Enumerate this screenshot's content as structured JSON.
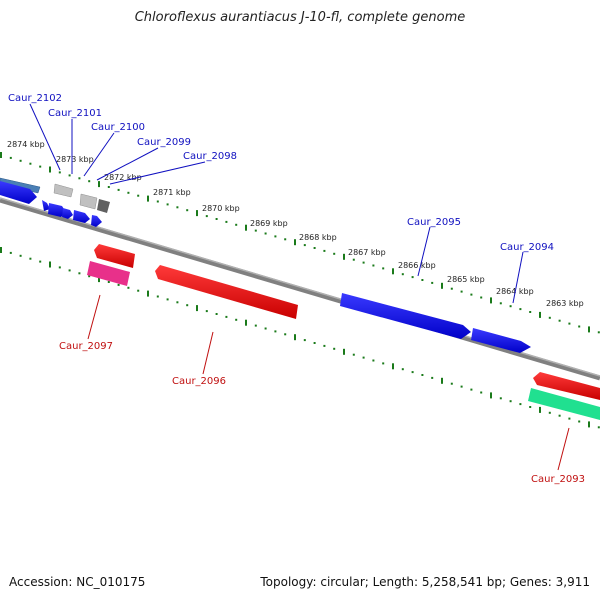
{
  "title": "Chloroflexus aurantiacus J-10-fl, complete genome",
  "footer": {
    "accession": "Accession: NC_010175",
    "summary": "Topology: circular; Length: 5,258,541 bp; Genes: 3,911"
  },
  "colors": {
    "backbone": "#7a7a7a",
    "tick": "#1a7a1a",
    "forward_cds": "#1414e6",
    "reverse_cds": "#e61414",
    "forward_label": "#1010c0",
    "reverse_label": "#c01010",
    "pseudo_gray": "#b0b0b0",
    "dark_gray": "#606060",
    "steel_blue": "#4a7fb5",
    "pink": "#e8308a",
    "green": "#20e090"
  },
  "kbp_labels": [
    "2874 kbp",
    "2873 kbp",
    "2872 kbp",
    "2871 kbp",
    "2870 kbp",
    "2869 kbp",
    "2868 kbp",
    "2867 kbp",
    "2866 kbp",
    "2865 kbp",
    "2864 kbp",
    "2863 kbp"
  ],
  "forward_genes": [
    "Caur_2102",
    "Caur_2101",
    "Caur_2100",
    "Caur_2099",
    "Caur_2098",
    "Caur_2095",
    "Caur_2094"
  ],
  "reverse_genes": [
    "Caur_2097",
    "Caur_2096",
    "Caur_2093"
  ]
}
